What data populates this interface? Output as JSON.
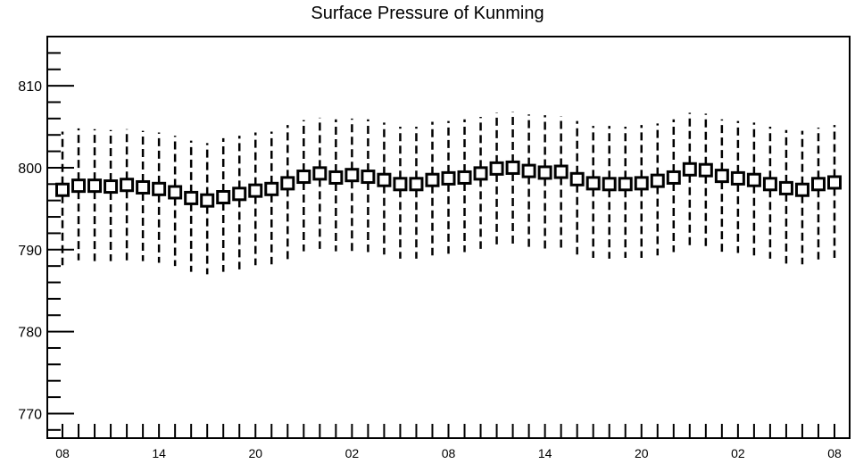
{
  "chart_data": {
    "type": "scatter",
    "title": "Surface Pressure of Kunming",
    "xlabel": "",
    "ylabel": "",
    "ylim": [
      767,
      816
    ],
    "y_ticks": [
      770,
      780,
      790,
      800,
      810
    ],
    "x_tick_labels": [
      "08",
      "14",
      "20",
      "02",
      "08",
      "14",
      "20",
      "02",
      "08"
    ],
    "x_tick_label_index": [
      0,
      6,
      12,
      18,
      24,
      30,
      36,
      42,
      48
    ],
    "grid": false,
    "series": [
      {
        "values": [
          797.3,
          797.8,
          797.8,
          797.7,
          797.9,
          797.6,
          797.4,
          797.0,
          796.3,
          796.0,
          796.4,
          796.8,
          797.2,
          797.4,
          798.1,
          798.9,
          799.3,
          798.8,
          799.1,
          798.9,
          798.5,
          798.0,
          798.0,
          798.5,
          798.7,
          798.8,
          799.3,
          799.9,
          800.0,
          799.6,
          799.4,
          799.5,
          798.6,
          798.1,
          798.0,
          798.0,
          798.1,
          798.4,
          798.8,
          799.8,
          799.7,
          799.0,
          798.7,
          798.5,
          798.0,
          797.5,
          797.3,
          798.0,
          798.2
        ],
        "upper": [
          804.4,
          804.8,
          804.7,
          804.6,
          804.7,
          804.5,
          804.3,
          803.9,
          803.3,
          803.0,
          803.6,
          803.9,
          804.3,
          804.4,
          805.2,
          805.8,
          806.1,
          805.9,
          806.0,
          805.9,
          805.5,
          805.0,
          805.0,
          805.6,
          805.7,
          805.9,
          806.2,
          806.7,
          806.8,
          806.5,
          806.4,
          806.3,
          805.7,
          805.1,
          805.1,
          805.0,
          805.2,
          805.4,
          805.9,
          806.7,
          806.6,
          805.9,
          805.7,
          805.5,
          805.0,
          804.6,
          804.5,
          804.9,
          805.2
        ],
        "lower": [
          788.1,
          788.7,
          788.6,
          788.6,
          788.7,
          788.6,
          788.4,
          788.0,
          787.3,
          787.0,
          787.3,
          787.6,
          788.1,
          788.2,
          788.8,
          789.8,
          790.1,
          789.8,
          789.8,
          789.7,
          789.4,
          788.9,
          788.9,
          789.3,
          789.5,
          789.7,
          790.1,
          790.5,
          790.5,
          790.2,
          790.1,
          790.1,
          789.4,
          789.0,
          788.9,
          789.0,
          789.0,
          789.3,
          789.7,
          790.5,
          790.4,
          789.7,
          789.6,
          789.3,
          788.9,
          788.3,
          788.2,
          788.8,
          789.0
        ]
      }
    ]
  }
}
